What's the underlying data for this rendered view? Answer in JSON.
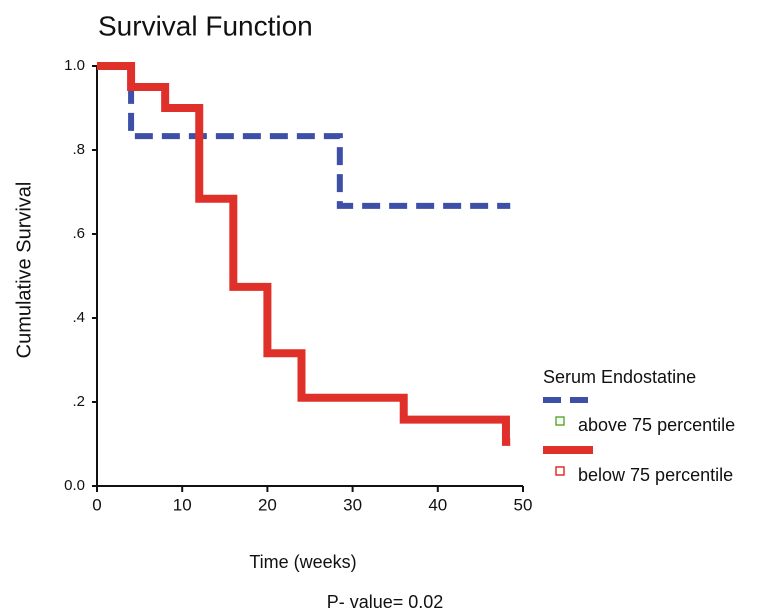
{
  "chart_data": {
    "type": "step",
    "title": "Survival Function",
    "x_label": "Time (weeks)",
    "y_label": "Cumulative Survival",
    "xlim": [
      0,
      50
    ],
    "xticks": [
      0,
      10,
      20,
      30,
      40,
      50
    ],
    "ylim": [
      0,
      1
    ],
    "yticks": [
      {
        "value": 0,
        "label": "0.0"
      },
      {
        "value": 0.2,
        "label": ".2"
      },
      {
        "value": 0.4,
        "label": ".4"
      },
      {
        "value": 0.6,
        "label": ".6"
      },
      {
        "value": 0.8,
        "label": ".8"
      },
      {
        "value": 1,
        "label": "1.0"
      }
    ],
    "legend_title": "Serum Endostatine",
    "legend": "right",
    "series": [
      {
        "name": "above 75 percentile",
        "color": "#3d4fa6",
        "marker_color": "#5ab030",
        "dashed": true,
        "x": [
          0,
          4,
          28.5,
          48.5
        ],
        "values": [
          1,
          0.833,
          0.667,
          0.667
        ]
      },
      {
        "name": "below 75 percentile",
        "color": "#e0302a",
        "marker_color": "#e0302a",
        "dashed": false,
        "x": [
          0,
          4,
          8,
          12,
          16,
          20,
          24,
          36,
          48,
          48.5
        ],
        "values": [
          1,
          0.95,
          0.9,
          0.684,
          0.474,
          0.316,
          0.21,
          0.158,
          0.105,
          0.105
        ]
      }
    ],
    "footnote": "P- value= 0.02"
  }
}
